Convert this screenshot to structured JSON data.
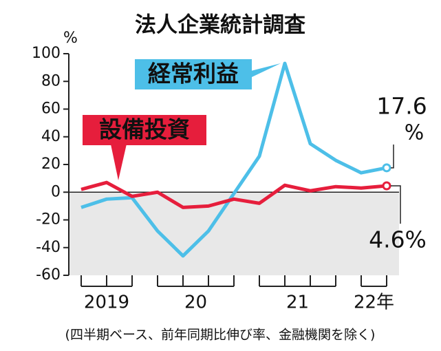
{
  "chart_data": {
    "type": "line",
    "title": "法人企業統計調査",
    "y_unit": "%",
    "footnote": "(四半期ベース、前年同期比伸び率、金融機関を除く)",
    "categories": [
      null,
      null,
      null,
      null,
      null,
      null,
      null,
      null,
      null,
      null,
      null,
      null,
      null
    ],
    "year_groups": [
      {
        "label": "2019",
        "count": 3
      },
      {
        "label": "20",
        "count": 4
      },
      {
        "label": "21",
        "count": 4
      },
      {
        "label": "22年",
        "count": 2
      }
    ],
    "series": [
      {
        "name": "経常利益",
        "color": "#4dbfe8",
        "values": [
          -11,
          -5,
          -4,
          -28,
          -46,
          -28,
          -1,
          26,
          93,
          35,
          23,
          14,
          17.6
        ],
        "value_label_unit": "%"
      },
      {
        "name": "設備投資",
        "color": "#e61e3c",
        "values": [
          2,
          7,
          -3,
          0,
          -11,
          -10,
          -5,
          -8,
          5,
          1,
          4,
          3,
          4.6
        ],
        "value_labels": [
          null,
          null,
          null,
          null,
          null,
          null,
          null,
          null,
          null,
          null,
          null,
          null,
          "4.6%"
        ]
      }
    ],
    "ylim": [
      -60,
      100
    ],
    "yticks": [
      -60,
      -40,
      -20,
      0,
      20,
      40,
      60,
      80,
      100
    ],
    "negative_shading": true
  }
}
